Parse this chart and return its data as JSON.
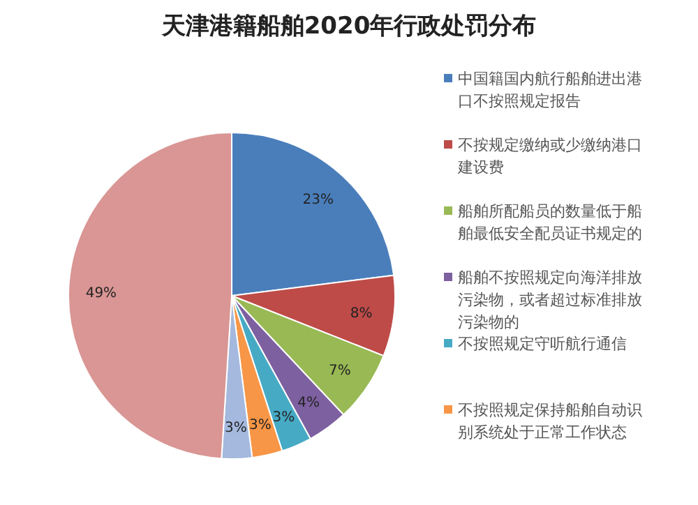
{
  "chart_data": {
    "type": "pie",
    "title": "天津港籍船舶2020年行政处罚分布",
    "categories": [
      "中国籍国内航行船舶进出港口不按照规定报告",
      "不按规定缴纳或少缴纳港口建设费",
      "船舶所配船员的数量低于船舶最低安全配员证书规定的",
      "船舶不按照规定向海洋排放污染物，或者超过标准排放污染物的",
      "不按照规定守听航行通信",
      "不按照规定保持船舶自动识别系统处于正常工作状态",
      null,
      null
    ],
    "values": [
      23,
      8,
      7,
      4,
      3,
      3,
      3,
      49
    ],
    "colors": [
      "#4a7ebb",
      "#be4b48",
      "#98b954",
      "#7d60a0",
      "#46aac5",
      "#f79646",
      "#a5b9de",
      "#d99694"
    ],
    "value_labels": [
      "23%",
      "8%",
      "7%",
      "4%",
      "3%",
      "3%",
      "3%",
      "49%"
    ],
    "legend": "right"
  }
}
